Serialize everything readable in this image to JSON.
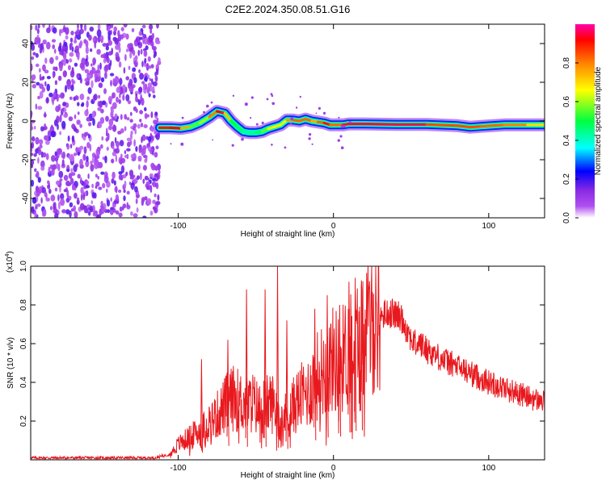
{
  "title": "C2E2.2024.350.08.51.G16",
  "chart_data": [
    {
      "type": "heatmap",
      "title": "C2E2.2024.350.08.51.G16",
      "xlabel": "Height of straight line (km)",
      "ylabel": "Frequency (Hz)",
      "xlim": [
        -195,
        136
      ],
      "ylim": [
        -50,
        50
      ],
      "x_ticks": [
        -100,
        0,
        100
      ],
      "y_ticks": [
        -40,
        -20,
        0,
        20,
        40
      ],
      "noise_region_x": [
        -195,
        -112
      ],
      "ridge": {
        "x": [
          -112,
          -105,
          -98,
          -92,
          -86,
          -80,
          -75,
          -70,
          -66,
          -62,
          -58,
          -54,
          -50,
          -46,
          -42,
          -38,
          -34,
          -30,
          -26,
          -22,
          -18,
          -14,
          -10,
          -6,
          -2,
          2,
          6,
          10,
          20,
          40,
          60,
          80,
          88,
          95,
          110,
          125,
          136
        ],
        "y": [
          -3.5,
          -3.5,
          -3.8,
          -3,
          -1,
          2,
          5,
          4,
          0,
          -3,
          -5.5,
          -6,
          -6,
          -5.5,
          -4,
          -3,
          -2,
          0.5,
          0.5,
          0,
          1,
          0,
          -0.5,
          -1,
          -2,
          -2,
          -2,
          -1.5,
          -1.5,
          -1.8,
          -1.8,
          -2.4,
          -3.2,
          -2.8,
          -2,
          -2,
          -2
        ],
        "amplitude": [
          0.85,
          0.95,
          0.9,
          0.6,
          0.5,
          0.7,
          0.9,
          0.95,
          0.5,
          0.5,
          0.45,
          0.4,
          0.45,
          0.5,
          0.6,
          0.75,
          0.6,
          0.7,
          0.85,
          0.8,
          0.85,
          0.8,
          0.7,
          0.95,
          0.85,
          0.8,
          0.85,
          0.95,
          0.95,
          0.95,
          0.95,
          0.75,
          0.95,
          0.75,
          0.9,
          0.7,
          0.7
        ]
      },
      "colorbar": {
        "label": "Normalized spectral amplitude",
        "range": [
          0,
          1
        ],
        "ticks": [
          "0.0",
          "0.2",
          "0.4",
          "0.6",
          "0.8"
        ],
        "colormap": [
          "#ffffff",
          "#a020f0",
          "#0000ff",
          "#00ffff",
          "#00ff00",
          "#ffff00",
          "#ff7f00",
          "#ff0000",
          "#ff00aa"
        ]
      }
    },
    {
      "type": "line",
      "xlabel": "Height of straight line (km)",
      "ylabel": "SNR (10 * v/v)",
      "yscale_label": "(x10",
      "yscale_exp": "4",
      "yscale_close": ")",
      "xlim": [
        -195,
        136
      ],
      "ylim": [
        0,
        1.0
      ],
      "x_ticks": [
        -100,
        0,
        100
      ],
      "y_ticks": [
        "0.2",
        "0.4",
        "0.6",
        "0.8",
        "1.0"
      ],
      "y_tick_values": [
        0.2,
        0.4,
        0.6,
        0.8,
        1.0
      ],
      "color": "#e8191e",
      "series": [
        {
          "x": [
            -195,
            -150,
            -115,
            -105,
            -100,
            -96,
            -92,
            -88,
            -84,
            -80,
            -76,
            -72,
            -68,
            -64,
            -60,
            -56,
            -52,
            -48,
            -44,
            -40,
            -36,
            -32,
            -28,
            -24,
            -20,
            -16,
            -12,
            -8,
            -4,
            0,
            4,
            8,
            12,
            16,
            20,
            24,
            28,
            32,
            36,
            40,
            44,
            48,
            52,
            56,
            60,
            70,
            80,
            90,
            100,
            110,
            120,
            130,
            136
          ],
          "y": [
            0.01,
            0.01,
            0.01,
            0.03,
            0.08,
            0.1,
            0.12,
            0.14,
            0.16,
            0.2,
            0.22,
            0.26,
            0.3,
            0.32,
            0.3,
            0.28,
            0.3,
            0.26,
            0.28,
            0.3,
            0.26,
            0.22,
            0.25,
            0.3,
            0.33,
            0.35,
            0.42,
            0.45,
            0.48,
            0.52,
            0.5,
            0.55,
            0.62,
            0.62,
            0.65,
            0.7,
            0.74,
            0.75,
            0.76,
            0.75,
            0.73,
            0.66,
            0.6,
            0.6,
            0.57,
            0.52,
            0.48,
            0.44,
            0.4,
            0.37,
            0.34,
            0.31,
            0.3
          ]
        }
      ],
      "spikes": {
        "x": [
          -85,
          -68,
          -56,
          -44,
          -36,
          -30,
          -12,
          -4,
          4,
          10,
          14,
          18
        ],
        "y": [
          0.52,
          0.62,
          0.88,
          0.88,
          1.0,
          0.72,
          0.78,
          0.85,
          0.8,
          0.92,
          0.94,
          0.9
        ]
      }
    }
  ]
}
